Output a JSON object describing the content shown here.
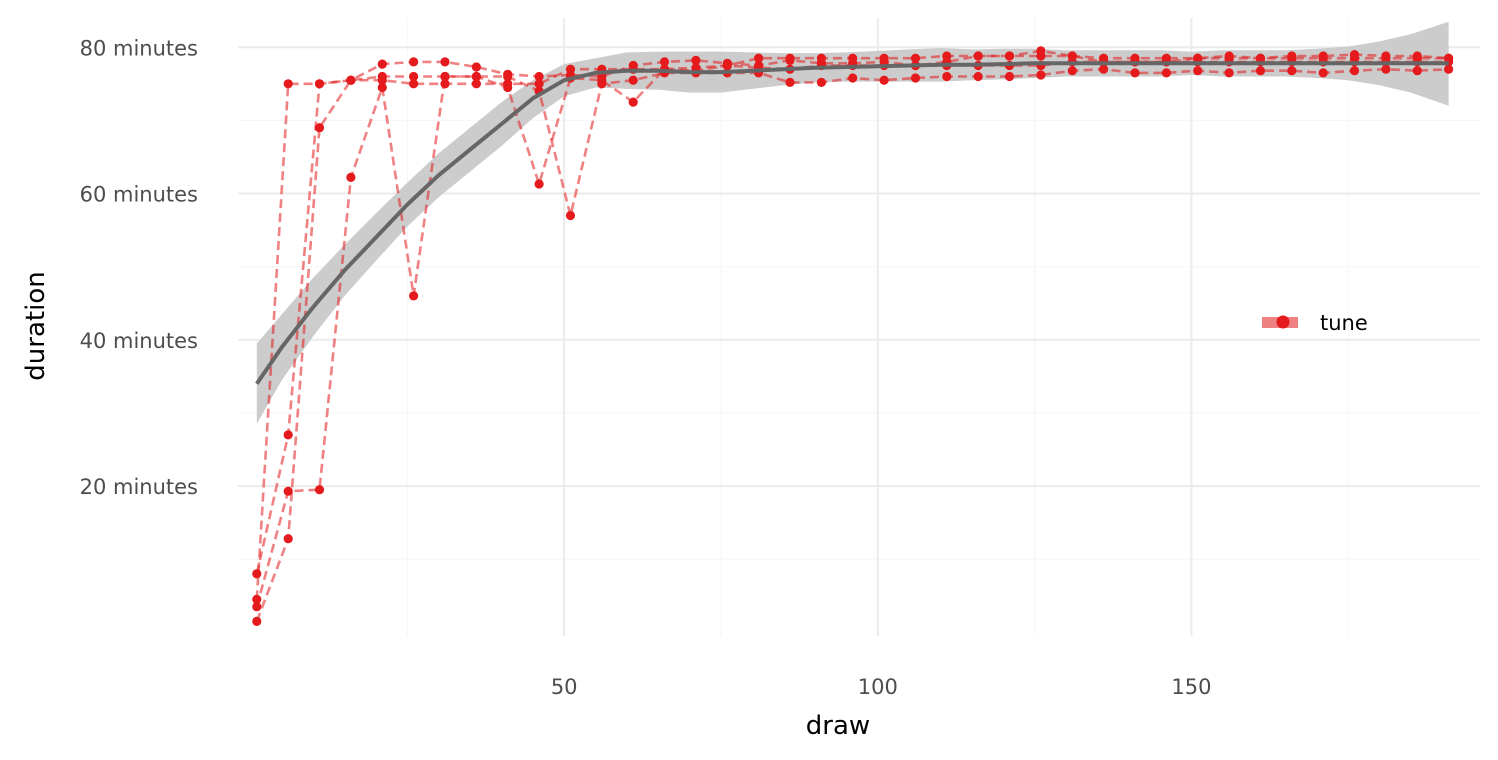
{
  "chart_data": {
    "type": "line",
    "xlabel": "draw",
    "ylabel": "duration",
    "xlim": [
      -2,
      196
    ],
    "ylim": [
      -0.5,
      84
    ],
    "x_ticks": [
      50,
      100,
      150
    ],
    "x_tick_labels": [
      "50",
      "100",
      "150"
    ],
    "y_ticks": [
      20,
      40,
      60,
      80
    ],
    "y_tick_labels": [
      "20 minutes",
      "40 minutes",
      "60 minutes",
      "80 minutes"
    ],
    "grid": true,
    "legend": {
      "position": "right",
      "entries": [
        "tune"
      ]
    },
    "colors": {
      "points": "#e41a1c",
      "smooth": "#666666",
      "ribbon": "#cccccc",
      "grid_major": "#ebebeb",
      "grid_minor": "#f7f7f7"
    },
    "x": [
      1,
      6,
      11,
      16,
      21,
      26,
      31,
      36,
      41,
      46,
      51,
      56,
      61,
      66,
      71,
      76,
      81,
      86,
      91,
      96,
      101,
      106,
      111,
      116,
      121,
      126,
      131,
      136,
      141,
      146,
      151,
      156,
      161,
      166,
      171,
      176,
      181,
      186,
      191
    ],
    "series": [
      {
        "values": [
          4.5,
          75,
          75,
          75.5,
          75.5,
          75,
          75,
          75,
          75,
          75,
          77,
          77,
          77,
          77,
          77.2,
          77.5,
          77.2,
          77,
          77.5,
          77.5,
          77.5,
          77.5,
          77.5,
          77.5,
          77.5,
          77.5,
          78,
          78,
          78,
          78,
          78,
          78,
          78,
          78,
          78,
          78,
          78,
          78,
          78
        ]
      },
      {
        "values": [
          8,
          27,
          75,
          75.5,
          77.7,
          78,
          78,
          77.3,
          76.3,
          76,
          76.2,
          76,
          77.5,
          78,
          78.2,
          77.8,
          77.5,
          78.2,
          77.8,
          77.8,
          78,
          77.5,
          78,
          78.8,
          78.8,
          79.5,
          78.8,
          78,
          78,
          78,
          78.5,
          78.8,
          78.5,
          78.8,
          78.8,
          79,
          78.8,
          78.8,
          78.5
        ]
      },
      {
        "values": [
          3.5,
          19.3,
          19.5,
          62.2,
          74.5,
          46,
          76,
          76,
          74.5,
          61.3,
          75.8,
          75.5,
          72.5,
          77,
          76.8,
          77.5,
          78.5,
          78.5,
          78.5,
          78.5,
          78.5,
          78.5,
          78.8,
          78.8,
          78.8,
          78.8,
          78.8,
          78.5,
          78.5,
          78.5,
          78.5,
          78.5,
          78.5,
          78.5,
          78.5,
          78.5,
          78.5,
          78.5,
          78.5
        ]
      },
      {
        "values": [
          1.5,
          12.8,
          69,
          75.5,
          76,
          76,
          76,
          76,
          76,
          74,
          57,
          75,
          75.5,
          76.5,
          76.5,
          76.5,
          76.5,
          75.2,
          75.2,
          75.8,
          75.5,
          75.8,
          76,
          76,
          76,
          76.2,
          76.8,
          77,
          76.5,
          76.5,
          76.8,
          76.5,
          76.8,
          76.8,
          76.5,
          76.8,
          77,
          76.8,
          77
        ]
      }
    ],
    "smooth": {
      "name": "",
      "x": [
        1,
        5,
        10,
        15,
        20,
        25,
        30,
        35,
        40,
        45,
        50,
        55,
        60,
        65,
        70,
        75,
        80,
        85,
        90,
        95,
        100,
        105,
        110,
        115,
        120,
        125,
        130,
        135,
        140,
        145,
        150,
        155,
        160,
        165,
        170,
        175,
        180,
        185,
        191
      ],
      "y": [
        34,
        39,
        44.5,
        49.5,
        54,
        58.5,
        62.5,
        66,
        69.5,
        73,
        75.5,
        76.5,
        76.8,
        76.8,
        76.6,
        76.6,
        76.8,
        77,
        77.2,
        77.3,
        77.4,
        77.5,
        77.6,
        77.6,
        77.7,
        77.8,
        77.8,
        77.8,
        77.8,
        77.8,
        77.8,
        77.8,
        77.8,
        77.8,
        77.8,
        77.8,
        77.8,
        77.8,
        77.8
      ],
      "lower": [
        28.5,
        34.5,
        40.5,
        46,
        50.8,
        55.5,
        59.5,
        63,
        66.5,
        70.3,
        73.3,
        74.5,
        74.3,
        74.2,
        73.8,
        73.8,
        74.3,
        74.8,
        75.2,
        75.3,
        75.3,
        75.3,
        75.3,
        75.5,
        75.6,
        75.8,
        76,
        76,
        76,
        76,
        76.2,
        76,
        76,
        76,
        75.8,
        75.5,
        74.8,
        73.8,
        72
      ],
      "upper": [
        39.5,
        43.5,
        48.5,
        53,
        57.3,
        61.5,
        65.5,
        69,
        72.5,
        75.5,
        77.7,
        78.5,
        79.3,
        79.4,
        79.4,
        79.4,
        79.3,
        79.2,
        79.2,
        79.3,
        79.5,
        79.7,
        79.9,
        79.7,
        79.8,
        79.8,
        79.6,
        79.6,
        79.6,
        79.6,
        79.4,
        79.6,
        79.6,
        79.6,
        79.8,
        80.1,
        80.8,
        81.8,
        83.5
      ]
    }
  }
}
